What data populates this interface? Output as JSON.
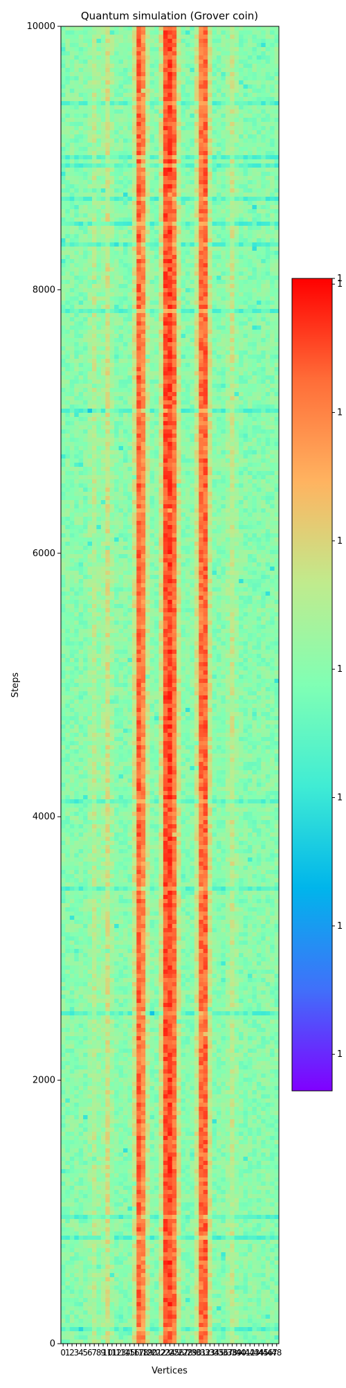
{
  "chart_data": {
    "type": "heatmap",
    "title": "Quantum simulation (Grover coin)",
    "xlabel": "Vertices",
    "ylabel": "Steps",
    "x_categories": [
      "0",
      "1",
      "2",
      "3",
      "4",
      "5",
      "6",
      "7",
      "8",
      "9",
      "10",
      "11",
      "12",
      "13",
      "14",
      "15",
      "16",
      "17",
      "18",
      "19",
      "20",
      "21",
      "22",
      "23",
      "24",
      "25",
      "26",
      "27",
      "28",
      "29",
      "30",
      "31",
      "32",
      "33",
      "34",
      "35",
      "36",
      "37",
      "38",
      "39",
      "40",
      "41",
      "42",
      "43",
      "44",
      "45",
      "46",
      "47",
      "48"
    ],
    "ylim": [
      0,
      10000
    ],
    "y_ticks": [
      0,
      2000,
      4000,
      6000,
      8000,
      10000
    ],
    "y_tick_labels": [
      "0",
      "2000",
      "4000",
      "6000",
      "8000",
      "10000"
    ],
    "colormap": "rainbow",
    "colorbar": {
      "scale": "log",
      "tick_labels": [
        "1",
        "1",
        "1",
        "1",
        "1",
        "1",
        "1"
      ],
      "colors": [
        "#8000ff",
        "#4070fa",
        "#00b5eb",
        "#40ecd4",
        "#80ffb4",
        "#c0eb8d",
        "#ffb360",
        "#ff6d38",
        "#ff0000"
      ]
    },
    "column_profile": [
      {
        "vertex": 0,
        "level": 0.52
      },
      {
        "vertex": 7,
        "level": 0.6
      },
      {
        "vertex": 10,
        "level": 0.64
      },
      {
        "vertex": 17,
        "level": 0.88
      },
      {
        "vertex": 18,
        "level": 0.82
      },
      {
        "vertex": 23,
        "level": 0.9
      },
      {
        "vertex": 24,
        "level": 0.92
      },
      {
        "vertex": 25,
        "level": 0.86
      },
      {
        "vertex": 31,
        "level": 0.86
      },
      {
        "vertex": 32,
        "level": 0.88
      },
      {
        "vertex": 38,
        "level": 0.62
      },
      {
        "vertex": 48,
        "level": 0.52
      }
    ],
    "background_level": 0.52,
    "colors": {
      "background_cell": "#c8e692",
      "bright_band": "#ff5a2e",
      "faint_band": "#f2c07a"
    }
  }
}
